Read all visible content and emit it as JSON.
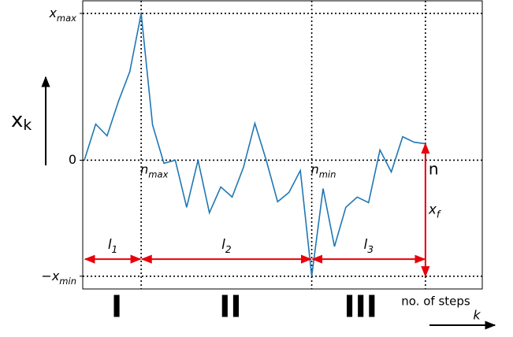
{
  "chart_data": {
    "type": "line",
    "ylabel": {
      "text": "x",
      "subscript": "k"
    },
    "xlabel": "no. of steps",
    "xlabel_symbol": "k",
    "x": [
      0,
      1,
      2,
      3,
      4,
      5,
      6,
      7,
      8,
      9,
      10,
      11,
      12,
      13,
      14,
      15,
      16,
      17,
      18,
      19,
      20,
      21,
      22,
      23,
      24,
      25,
      26,
      27,
      28,
      29,
      30
    ],
    "series": [
      {
        "color": "#1f77b4",
        "values": [
          0,
          2.46,
          1.66,
          4.01,
          6.04,
          10,
          2.41,
          -0.21,
          0,
          -3.21,
          0,
          -3.58,
          -1.82,
          -2.51,
          -0.48,
          2.51,
          0,
          -2.83,
          -2.19,
          -0.7,
          -7.9,
          -1.93,
          -5.88,
          -3.21,
          -2.51,
          -2.89,
          0.7,
          -0.8,
          1.6,
          1.23,
          1.12
        ]
      }
    ],
    "xlim": [
      -0.14,
      35
    ],
    "ylim": [
      -8.77,
      10.86
    ],
    "yticks": [
      {
        "value": 10,
        "label": "x",
        "subscript": "max"
      },
      0,
      {
        "value": -7.9,
        "label": "−x",
        "subscript": "min"
      }
    ],
    "grid": "dotted",
    "markers": [
      {
        "x": 5,
        "label": "n",
        "subscript": "max"
      },
      {
        "x": 20,
        "label": "n",
        "subscript": "min"
      },
      {
        "x": 30,
        "label": "n"
      }
    ],
    "intervals": [
      {
        "start": 0,
        "end": 5,
        "y": -6.74,
        "label": "l",
        "subscript": "1",
        "region": "I"
      },
      {
        "start": 5,
        "end": 20,
        "y": -6.74,
        "label": "l",
        "subscript": "2",
        "region": "II"
      },
      {
        "start": 20,
        "end": 30,
        "y": -6.74,
        "label": "l",
        "subscript": "3",
        "region": "III"
      }
    ],
    "final_arrow": {
      "x": 30,
      "from": -7.9,
      "to": 1.12,
      "label": "x",
      "subscript": "f"
    },
    "annotation_color": "#e8000b"
  }
}
